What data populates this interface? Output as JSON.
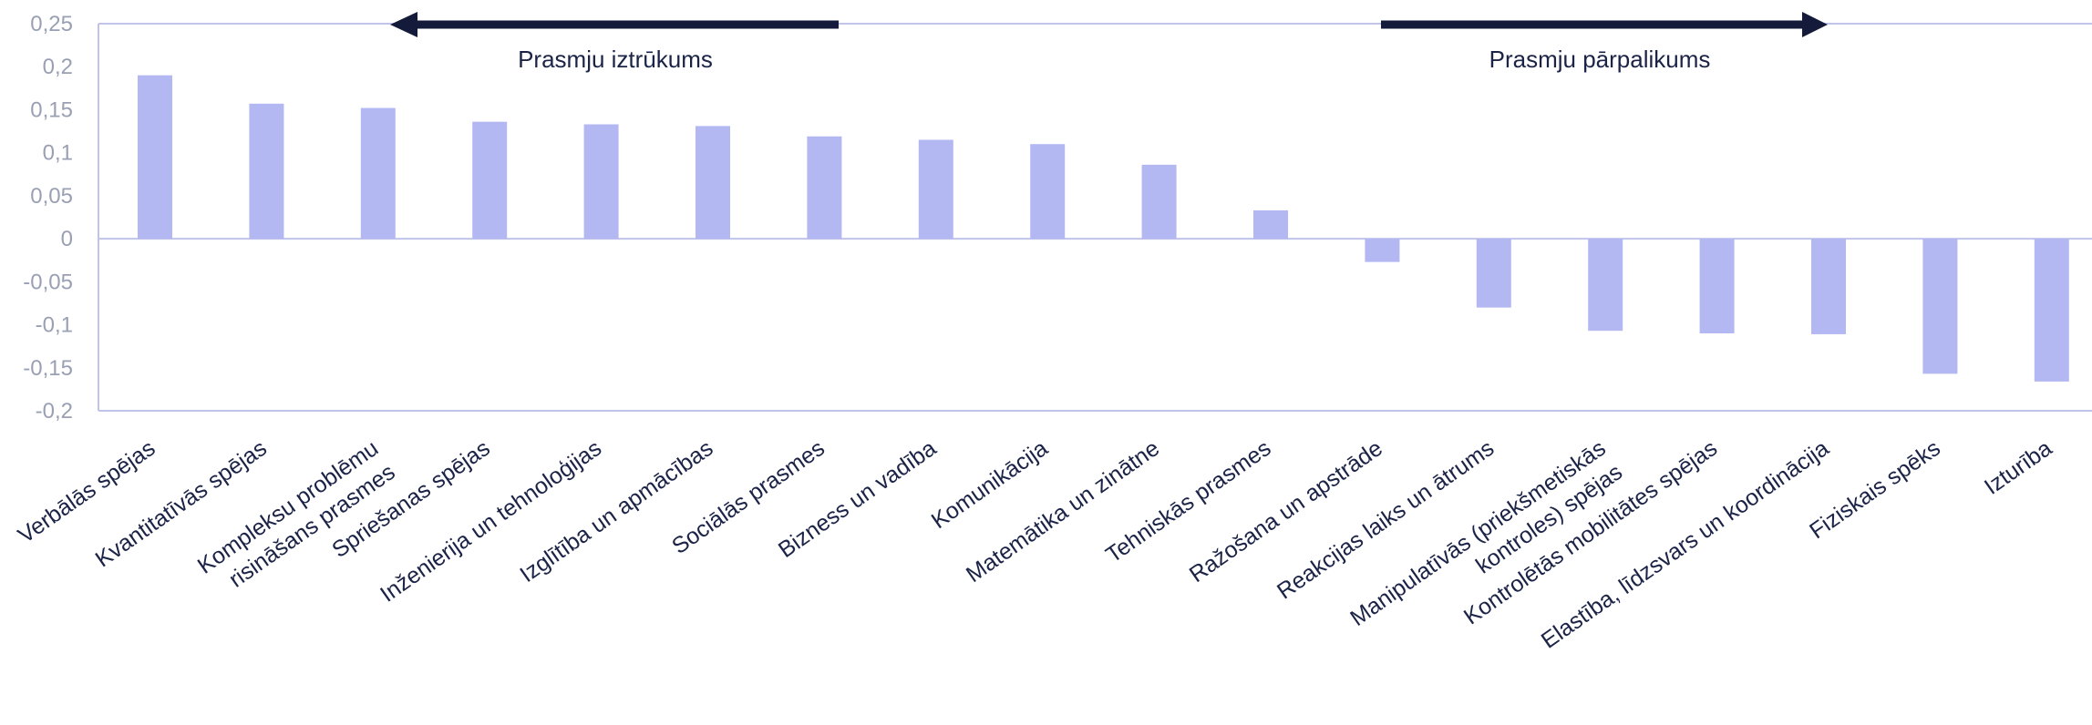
{
  "chart_data": {
    "type": "bar",
    "categories": [
      [
        "Verbālās spējas"
      ],
      [
        "Kvantitatīvās spējas"
      ],
      [
        "Kompleksu problēmu",
        "risināšans prasmes"
      ],
      [
        "Spriešanas spējas"
      ],
      [
        "Inženierija un tehnoloģijas"
      ],
      [
        "Izglītība un apmācības"
      ],
      [
        "Sociālās prasmes"
      ],
      [
        "Bizness un vadība"
      ],
      [
        "Komunikācija"
      ],
      [
        "Matemātika un zinātne"
      ],
      [
        "Tehniskās prasmes"
      ],
      [
        "Ražošana un apstrāde"
      ],
      [
        "Reakcijas laiks un ātrums"
      ],
      [
        "Manipulatīvās (priekšmetiskās",
        "kontroles) spējas"
      ],
      [
        "Kontrolētās mobilitātes spējas"
      ],
      [
        "Elastība, līdzsvars un koordinācija"
      ],
      [
        "Fiziskais spēks"
      ],
      [
        "Izturība"
      ]
    ],
    "values": [
      0.19,
      0.157,
      0.152,
      0.136,
      0.133,
      0.131,
      0.119,
      0.115,
      0.11,
      0.086,
      0.033,
      -0.027,
      -0.08,
      -0.107,
      -0.11,
      -0.111,
      -0.157,
      -0.166
    ],
    "ylim": [
      -0.2,
      0.25
    ],
    "yticks": [
      {
        "v": 0.25,
        "label": "0,25"
      },
      {
        "v": 0.2,
        "label": "0,2"
      },
      {
        "v": 0.15,
        "label": "0,15"
      },
      {
        "v": 0.1,
        "label": "0,1"
      },
      {
        "v": 0.05,
        "label": "0,05"
      },
      {
        "v": 0,
        "label": "0"
      },
      {
        "v": -0.05,
        "label": "-0,05"
      },
      {
        "v": -0.1,
        "label": "-0,1"
      },
      {
        "v": -0.15,
        "label": "-0,15"
      },
      {
        "v": -0.2,
        "label": "-0,2"
      }
    ],
    "annotations": [
      {
        "text": "Prasmju iztrūkums",
        "direction": "left"
      },
      {
        "text": "Prasmju pārpalikums",
        "direction": "right"
      }
    ],
    "colors": {
      "bar": "#b3b8f3",
      "axis": "#c0c4ea",
      "arrow": "#141a3a"
    },
    "grid": false,
    "legend": "none"
  }
}
